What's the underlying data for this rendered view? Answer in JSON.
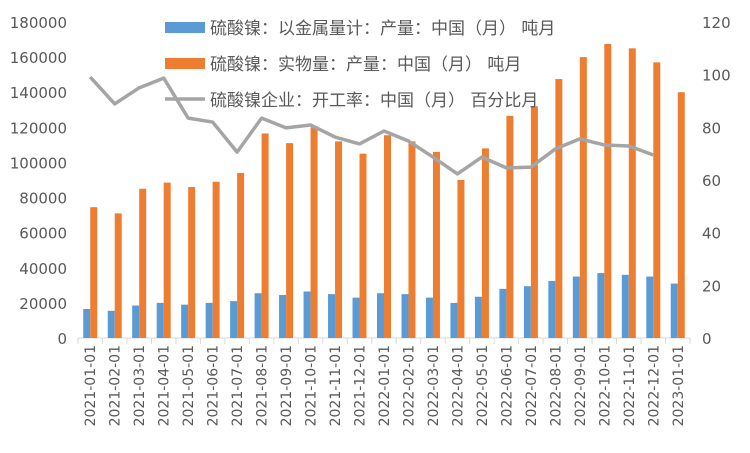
{
  "chart_data": {
    "type": "bar+line",
    "title": "",
    "categories": [
      "2021-01-01",
      "2021-02-01",
      "2021-03-01",
      "2021-04-01",
      "2021-05-01",
      "2021-06-01",
      "2021-07-01",
      "2021-08-01",
      "2021-09-01",
      "2021-10-01",
      "2021-11-01",
      "2021-12-01",
      "2022-01-01",
      "2022-02-01",
      "2022-03-01",
      "2022-04-01",
      "2022-05-01",
      "2022-06-01",
      "2022-07-01",
      "2022-08-01",
      "2022-09-01",
      "2022-10-01",
      "2022-11-01",
      "2022-12-01",
      "2023-01-01"
    ],
    "y_left": {
      "range": [
        0,
        180000
      ],
      "ticks": [
        0,
        20000,
        40000,
        60000,
        80000,
        100000,
        120000,
        140000,
        160000,
        180000
      ]
    },
    "y_right": {
      "range": [
        0,
        120
      ],
      "ticks": [
        0,
        20,
        40,
        60,
        80,
        100,
        120
      ]
    },
    "grid": false,
    "legend_placement": "top",
    "series": [
      {
        "name": "硫酸镍：以金属量计：产量：中国（月） 吨月",
        "type": "bar",
        "axis": "left",
        "color": "#5b9bd5",
        "values": [
          16500,
          15500,
          18500,
          20000,
          19000,
          20000,
          21000,
          25500,
          24500,
          26500,
          25000,
          23000,
          25500,
          25000,
          23000,
          20000,
          23500,
          28000,
          29500,
          32500,
          35000,
          37000,
          36000,
          35000,
          31000
        ]
      },
      {
        "name": "硫酸镍：实物量：产量：中国（月） 吨月",
        "type": "bar",
        "axis": "left",
        "color": "#ed7d31",
        "values": [
          74500,
          71000,
          85000,
          88500,
          86000,
          89000,
          94000,
          116500,
          111000,
          120000,
          112000,
          105000,
          115500,
          112000,
          106000,
          90000,
          108000,
          126500,
          132000,
          147500,
          160000,
          167500,
          165000,
          157000,
          140000
        ]
      },
      {
        "name": "硫酸镍企业：开工率：中国（月） 百分比月",
        "type": "line",
        "axis": "right",
        "color": "#a5a5a5",
        "values": [
          99.1,
          88.9,
          95,
          98.7,
          83.5,
          82,
          70.6,
          83.5,
          79.8,
          80.9,
          76.3,
          73.7,
          78.6,
          74.8,
          68.7,
          62.3,
          68.7,
          64.6,
          64.9,
          71.8,
          75.6,
          73.3,
          72.9,
          69.5,
          null
        ]
      }
    ]
  }
}
